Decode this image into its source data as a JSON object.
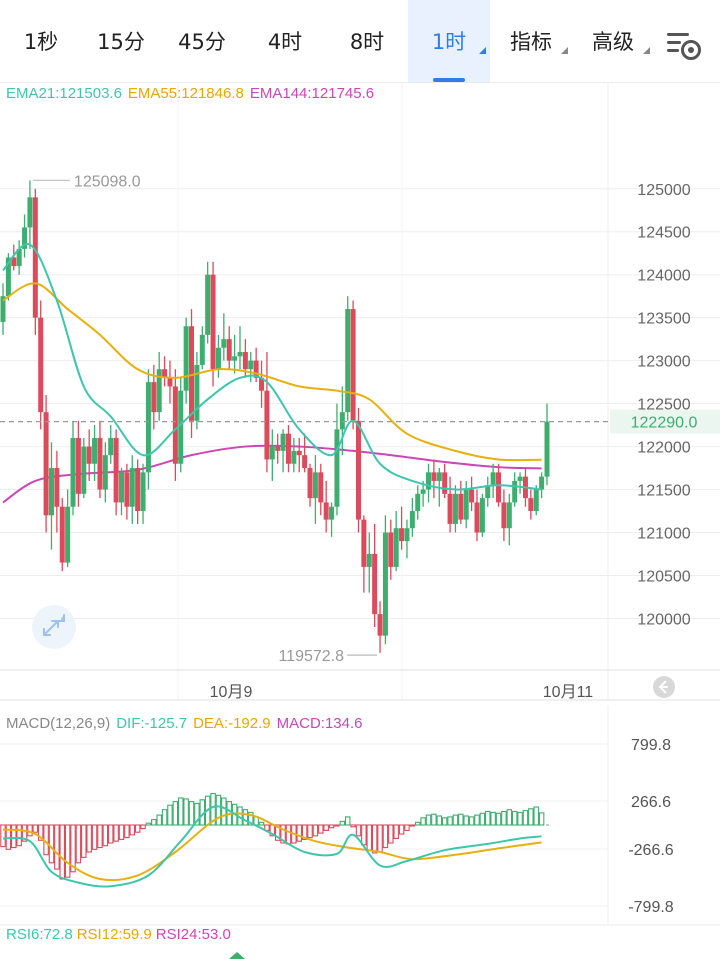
{
  "toolbar": {
    "tabs": [
      {
        "label": "1秒"
      },
      {
        "label": "15分"
      },
      {
        "label": "45分"
      },
      {
        "label": "4时"
      },
      {
        "label": "8时"
      },
      {
        "label": "1时",
        "active": true
      },
      {
        "label": "指标",
        "dropdown": true
      },
      {
        "label": "高级",
        "dropdown": true
      }
    ],
    "settings_icon": "settings-gear-icon"
  },
  "colors": {
    "up": "#3dae6e",
    "down": "#dc4a5c",
    "ema21": "#3ec6ad",
    "ema55": "#e8b00f",
    "ema144": "#cc46b8",
    "accent": "#2f7ee8"
  },
  "main_legend": {
    "ema21": "EMA21:121503.6",
    "ema55": "EMA55:121846.8",
    "ema144": "EMA144:121745.6"
  },
  "macd_legend": {
    "name": "MACD(12,26,9)",
    "dif": "DIF:-125.7",
    "dea": "DEA:-192.9",
    "macd": "MACD:134.6"
  },
  "rsi_legend": {
    "rsi6": "RSI6:72.8",
    "rsi12": "RSI12:59.9",
    "rsi24": "RSI24:53.0"
  },
  "chart_data": {
    "type": "candlestick",
    "interval": "1时",
    "y_ticks": [
      125000,
      124500,
      124000,
      123500,
      123000,
      122500,
      122000,
      121500,
      121000,
      120500,
      120000
    ],
    "ylim": [
      119400,
      125800
    ],
    "current_price": "122290.0",
    "high_marker": "125098.0",
    "low_marker": "119572.8",
    "x_labels": [
      "10月9",
      "10月11"
    ],
    "candles": [
      [
        123450,
        123900,
        123300,
        123750
      ],
      [
        123750,
        124250,
        123700,
        124200
      ],
      [
        124200,
        124350,
        124050,
        124100
      ],
      [
        124100,
        124400,
        124000,
        124300
      ],
      [
        124300,
        124700,
        124200,
        124550
      ],
      [
        124550,
        125098,
        124300,
        124900
      ],
      [
        124900,
        125000,
        123300,
        123500
      ],
      [
        123500,
        123700,
        122200,
        122400
      ],
      [
        122400,
        122600,
        121000,
        121200
      ],
      [
        121200,
        122050,
        120800,
        121750
      ],
      [
        121750,
        121950,
        121000,
        121300
      ],
      [
        121300,
        121400,
        120550,
        120650
      ],
      [
        120650,
        121500,
        120600,
        121300
      ],
      [
        121300,
        122300,
        121200,
        122100
      ],
      [
        122100,
        122300,
        121300,
        121450
      ],
      [
        121450,
        122100,
        121400,
        122000
      ],
      [
        122000,
        122200,
        121600,
        121800
      ],
      [
        121800,
        122250,
        121600,
        122100
      ],
      [
        122100,
        122300,
        121400,
        121500
      ],
      [
        121500,
        122050,
        121350,
        121900
      ],
      [
        121900,
        122250,
        121800,
        122100
      ],
      [
        122100,
        122200,
        121200,
        121350
      ],
      [
        121350,
        121750,
        121200,
        121700
      ],
      [
        121700,
        121800,
        121150,
        121300
      ],
      [
        121300,
        121900,
        121100,
        121750
      ],
      [
        121750,
        121850,
        121100,
        121250
      ],
      [
        121250,
        121800,
        121100,
        121700
      ],
      [
        121700,
        122900,
        121500,
        122750
      ],
      [
        122750,
        122950,
        122200,
        122400
      ],
      [
        122400,
        123100,
        122300,
        122900
      ],
      [
        122900,
        123050,
        122700,
        122800
      ],
      [
        122800,
        123000,
        122500,
        122700
      ],
      [
        122700,
        122900,
        121600,
        121800
      ],
      [
        121800,
        122800,
        121700,
        122650
      ],
      [
        122650,
        123500,
        122500,
        123400
      ],
      [
        123400,
        123600,
        122100,
        122300
      ],
      [
        122300,
        123100,
        122200,
        122950
      ],
      [
        122950,
        123400,
        122900,
        123300
      ],
      [
        123300,
        124150,
        123200,
        124000
      ],
      [
        124000,
        124150,
        122700,
        122900
      ],
      [
        122900,
        123300,
        122800,
        123150
      ],
      [
        123150,
        123550,
        123000,
        123250
      ],
      [
        123250,
        123400,
        122900,
        123000
      ],
      [
        123000,
        123300,
        122850,
        123050
      ],
      [
        123050,
        123400,
        122900,
        123100
      ],
      [
        123100,
        123250,
        122800,
        122900
      ],
      [
        122900,
        123100,
        122750,
        123000
      ],
      [
        123000,
        123150,
        122750,
        122800
      ],
      [
        122800,
        123000,
        122450,
        122650
      ],
      [
        122650,
        123100,
        121700,
        121850
      ],
      [
        121850,
        122200,
        121600,
        122000
      ],
      [
        122000,
        122150,
        121800,
        121950
      ],
      [
        121950,
        122200,
        121700,
        122150
      ],
      [
        122150,
        122250,
        121700,
        121800
      ],
      [
        121800,
        122100,
        121700,
        121950
      ],
      [
        121950,
        122100,
        121700,
        121900
      ],
      [
        121900,
        122150,
        121700,
        121750
      ],
      [
        121750,
        121800,
        121300,
        121400
      ],
      [
        121400,
        121900,
        121100,
        121700
      ],
      [
        121700,
        121800,
        121200,
        121350
      ],
      [
        121350,
        121600,
        121000,
        121150
      ],
      [
        121150,
        121350,
        120950,
        121300
      ],
      [
        121300,
        122500,
        121200,
        122200
      ],
      [
        122200,
        122700,
        121900,
        122400
      ],
      [
        122400,
        123750,
        122300,
        123600
      ],
      [
        123600,
        123700,
        122200,
        122300
      ],
      [
        122300,
        122450,
        121000,
        121150
      ],
      [
        121150,
        121200,
        120300,
        120600
      ],
      [
        120600,
        121000,
        120300,
        120750
      ],
      [
        120750,
        121100,
        119900,
        120050
      ],
      [
        120050,
        120200,
        119600,
        119800
      ],
      [
        119800,
        121200,
        119700,
        121000
      ],
      [
        121000,
        121150,
        120450,
        120600
      ],
      [
        120600,
        121250,
        120550,
        121050
      ],
      [
        121050,
        121300,
        120800,
        120900
      ],
      [
        120900,
        121150,
        120700,
        121050
      ],
      [
        121050,
        121400,
        120950,
        121250
      ],
      [
        121250,
        121550,
        121150,
        121450
      ],
      [
        121450,
        121600,
        121300,
        121500
      ],
      [
        121500,
        121800,
        121350,
        121700
      ],
      [
        121700,
        121850,
        121400,
        121600
      ],
      [
        121600,
        121750,
        121300,
        121700
      ],
      [
        121700,
        121800,
        121400,
        121450
      ],
      [
        121450,
        121650,
        121000,
        121100
      ],
      [
        121100,
        121550,
        121000,
        121450
      ],
      [
        121450,
        121600,
        121100,
        121150
      ],
      [
        121150,
        121600,
        121050,
        121500
      ],
      [
        121500,
        121650,
        121250,
        121350
      ],
      [
        121350,
        121500,
        120900,
        121000
      ],
      [
        121000,
        121450,
        120950,
        121400
      ],
      [
        121400,
        121650,
        121300,
        121550
      ],
      [
        121550,
        121800,
        121400,
        121700
      ],
      [
        121700,
        121800,
        121300,
        121350
      ],
      [
        121350,
        121500,
        120900,
        121050
      ],
      [
        121050,
        121450,
        120850,
        121350
      ],
      [
        121350,
        121700,
        121300,
        121600
      ],
      [
        121600,
        121700,
        121450,
        121650
      ],
      [
        121650,
        121750,
        121300,
        121400
      ],
      [
        121400,
        121500,
        121150,
        121250
      ],
      [
        121250,
        121550,
        121200,
        121500
      ],
      [
        121500,
        121700,
        121400,
        121650
      ],
      [
        121650,
        122500,
        121550,
        122290
      ]
    ],
    "ema21_points": [
      [
        0,
        124050
      ],
      [
        5,
        124350
      ],
      [
        10,
        123700
      ],
      [
        15,
        122700
      ],
      [
        20,
        122350
      ],
      [
        26,
        121900
      ],
      [
        32,
        122200
      ],
      [
        38,
        122550
      ],
      [
        44,
        122800
      ],
      [
        49,
        122750
      ],
      [
        55,
        122200
      ],
      [
        61,
        121900
      ],
      [
        65,
        122300
      ],
      [
        70,
        121800
      ],
      [
        76,
        121600
      ],
      [
        84,
        121500
      ],
      [
        92,
        121550
      ],
      [
        100,
        121500
      ]
    ],
    "ema55_points": [
      [
        0,
        123700
      ],
      [
        6,
        123900
      ],
      [
        12,
        123600
      ],
      [
        18,
        123300
      ],
      [
        25,
        122900
      ],
      [
        32,
        122800
      ],
      [
        40,
        122900
      ],
      [
        47,
        122850
      ],
      [
        55,
        122700
      ],
      [
        62,
        122650
      ],
      [
        68,
        122550
      ],
      [
        75,
        122150
      ],
      [
        84,
        121950
      ],
      [
        92,
        121850
      ],
      [
        100,
        121846.8
      ]
    ],
    "ema144_points": [
      [
        0,
        121350
      ],
      [
        6,
        121600
      ],
      [
        14,
        121680
      ],
      [
        25,
        121730
      ],
      [
        35,
        121900
      ],
      [
        45,
        122000
      ],
      [
        55,
        122000
      ],
      [
        65,
        121950
      ],
      [
        72,
        121900
      ],
      [
        82,
        121820
      ],
      [
        92,
        121760
      ],
      [
        100,
        121745.6
      ]
    ],
    "macd": {
      "y_ticks": [
        "799.8",
        "266.6",
        "-266.6",
        "-799.8"
      ],
      "ylim": [
        -900,
        900
      ],
      "histogram": [
        -240,
        -270,
        -250,
        -230,
        -180,
        -120,
        -80,
        -170,
        -330,
        -420,
        -490,
        -600,
        -580,
        -520,
        -420,
        -360,
        -300,
        -270,
        -250,
        -230,
        -200,
        -180,
        -160,
        -140,
        -110,
        -80,
        -40,
        20,
        60,
        110,
        170,
        220,
        260,
        300,
        290,
        260,
        240,
        280,
        320,
        350,
        330,
        300,
        260,
        230,
        200,
        170,
        140,
        90,
        30,
        -60,
        -120,
        -170,
        -200,
        -210,
        -200,
        -180,
        -160,
        -140,
        -120,
        -90,
        -60,
        -30,
        -10,
        40,
        90,
        -20,
        -120,
        -220,
        -280,
        -310,
        -300,
        -250,
        -200,
        -150,
        -100,
        -60,
        -10,
        30,
        80,
        110,
        120,
        100,
        80,
        90,
        110,
        120,
        100,
        90,
        110,
        130,
        150,
        140,
        130,
        150,
        170,
        150,
        140,
        160,
        180,
        200,
        134.6
      ],
      "dif_points": [
        [
          0,
          -150
        ],
        [
          5,
          -180
        ],
        [
          9,
          -520
        ],
        [
          14,
          -640
        ],
        [
          20,
          -680
        ],
        [
          27,
          -560
        ],
        [
          33,
          -180
        ],
        [
          39,
          200
        ],
        [
          45,
          50
        ],
        [
          50,
          -100
        ],
        [
          56,
          -300
        ],
        [
          62,
          -320
        ],
        [
          65,
          -110
        ],
        [
          70,
          -450
        ],
        [
          75,
          -400
        ],
        [
          82,
          -280
        ],
        [
          90,
          -210
        ],
        [
          96,
          -150
        ],
        [
          100,
          -125.7
        ]
      ],
      "dea_points": [
        [
          0,
          -50
        ],
        [
          6,
          -100
        ],
        [
          12,
          -420
        ],
        [
          18,
          -600
        ],
        [
          25,
          -560
        ],
        [
          32,
          -300
        ],
        [
          40,
          80
        ],
        [
          46,
          110
        ],
        [
          52,
          -50
        ],
        [
          58,
          -180
        ],
        [
          64,
          -250
        ],
        [
          70,
          -300
        ],
        [
          76,
          -380
        ],
        [
          84,
          -330
        ],
        [
          92,
          -260
        ],
        [
          100,
          -192.9
        ]
      ]
    }
  }
}
